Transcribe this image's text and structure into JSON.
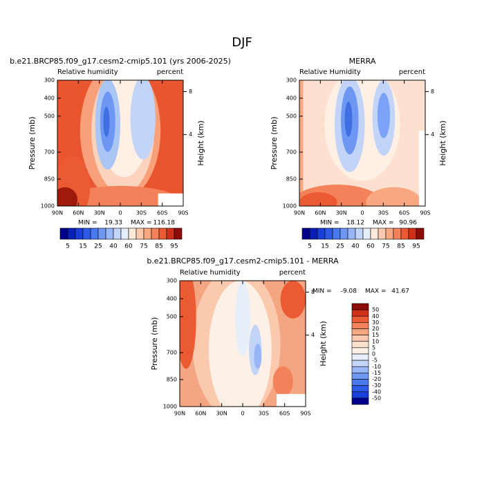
{
  "title": "DJF",
  "chart_data": [
    {
      "type": "contour",
      "title": "b.e21.BRCP85.f09_g17.cesm2-cmip5.101 (yrs 2006-2025)",
      "left_label": "Relative humidity",
      "right_label": "percent",
      "ylabel": "Pressure (mb)",
      "y2label": "Height (km)",
      "xlim": [
        90,
        -90
      ],
      "xticks": [
        {
          "value": 90,
          "label": "90N"
        },
        {
          "value": 60,
          "label": "60N"
        },
        {
          "value": 30,
          "label": "30N"
        },
        0,
        {
          "value": -30,
          "label": "30S"
        },
        {
          "value": -60,
          "label": "60S"
        },
        {
          "value": -90,
          "label": "90S"
        }
      ],
      "ylim": [
        1000,
        300
      ],
      "yticks": [
        300,
        400,
        500,
        700,
        850,
        1000
      ],
      "y2ticks": [
        8,
        4
      ],
      "min_label": "MIN =",
      "min": 19.33,
      "max_label": "MAX =",
      "max": 116.18,
      "colorbar": {
        "orientation": "horizontal",
        "levels": [
          5,
          10,
          15,
          20,
          25,
          30,
          40,
          50,
          60,
          70,
          75,
          80,
          85,
          90,
          95
        ],
        "colors": [
          "#00008a",
          "#0a1fb4",
          "#1a3fd8",
          "#2d5be8",
          "#4a78ef",
          "#6e96f3",
          "#98b6f6",
          "#c2d4f8",
          "#e6eefa",
          "#fde8da",
          "#fbc9ad",
          "#f8a780",
          "#f3825a",
          "#ec5a34",
          "#d0301a",
          "#8c0c06"
        ]
      }
    },
    {
      "type": "contour",
      "title": "MERRA",
      "left_label": "Relative  Humidity",
      "right_label": "percent",
      "ylabel": "Pressure (mb)",
      "y2label": "Height (km)",
      "xlim": [
        90,
        -90
      ],
      "xticks": [
        {
          "value": 90,
          "label": "90N"
        },
        {
          "value": 60,
          "label": "60N"
        },
        {
          "value": 30,
          "label": "30N"
        },
        0,
        {
          "value": -30,
          "label": "30S"
        },
        {
          "value": -60,
          "label": "60S"
        },
        {
          "value": -90,
          "label": "90S"
        }
      ],
      "ylim": [
        1000,
        300
      ],
      "yticks": [
        300,
        400,
        500,
        700,
        850,
        1000
      ],
      "y2ticks": [
        8,
        4
      ],
      "min_label": "MIN =",
      "min": 18.12,
      "max_label": "MAX =",
      "max": 90.96,
      "colorbar": {
        "orientation": "horizontal",
        "levels": [
          5,
          10,
          15,
          20,
          25,
          30,
          40,
          50,
          60,
          70,
          75,
          80,
          85,
          90,
          95
        ],
        "colors": [
          "#00008a",
          "#0a1fb4",
          "#1a3fd8",
          "#2d5be8",
          "#4a78ef",
          "#6e96f3",
          "#98b6f6",
          "#c2d4f8",
          "#e6eefa",
          "#fde8da",
          "#fbc9ad",
          "#f8a780",
          "#f3825a",
          "#ec5a34",
          "#d0301a",
          "#8c0c06"
        ]
      }
    },
    {
      "type": "contour",
      "title": "b.e21.BRCP85.f09_g17.cesm2-cmip5.101 - MERRA",
      "left_label": "Relative humidity",
      "right_label": "percent",
      "ylabel": "Pressure (mb)",
      "y2label": "Height (km)",
      "xlim": [
        90,
        -90
      ],
      "xticks": [
        {
          "value": 90,
          "label": "90N"
        },
        {
          "value": 60,
          "label": "60N"
        },
        {
          "value": 30,
          "label": "30N"
        },
        0,
        {
          "value": -30,
          "label": "30S"
        },
        {
          "value": -60,
          "label": "60S"
        },
        {
          "value": -90,
          "label": "90S"
        }
      ],
      "ylim": [
        1000,
        300
      ],
      "yticks": [
        300,
        400,
        500,
        700,
        850,
        1000
      ],
      "y2ticks": [
        8,
        4
      ],
      "min_label": "MIN =",
      "min": -9.08,
      "max_label": "MAX =",
      "max": 41.67,
      "colorbar": {
        "orientation": "vertical",
        "levels": [
          50,
          40,
          30,
          20,
          15,
          10,
          5,
          0,
          -5,
          -10,
          -15,
          -20,
          -30,
          -40,
          -50
        ],
        "colors": [
          "#8c0c06",
          "#d0301a",
          "#ec5a34",
          "#f3825a",
          "#f8a780",
          "#fbc9ad",
          "#fde1cf",
          "#fdf0e6",
          "#e6eefa",
          "#c2d4f8",
          "#98b6f6",
          "#6e96f3",
          "#4a78ef",
          "#2d5be8",
          "#1a3fd8",
          "#00008a"
        ]
      }
    }
  ]
}
